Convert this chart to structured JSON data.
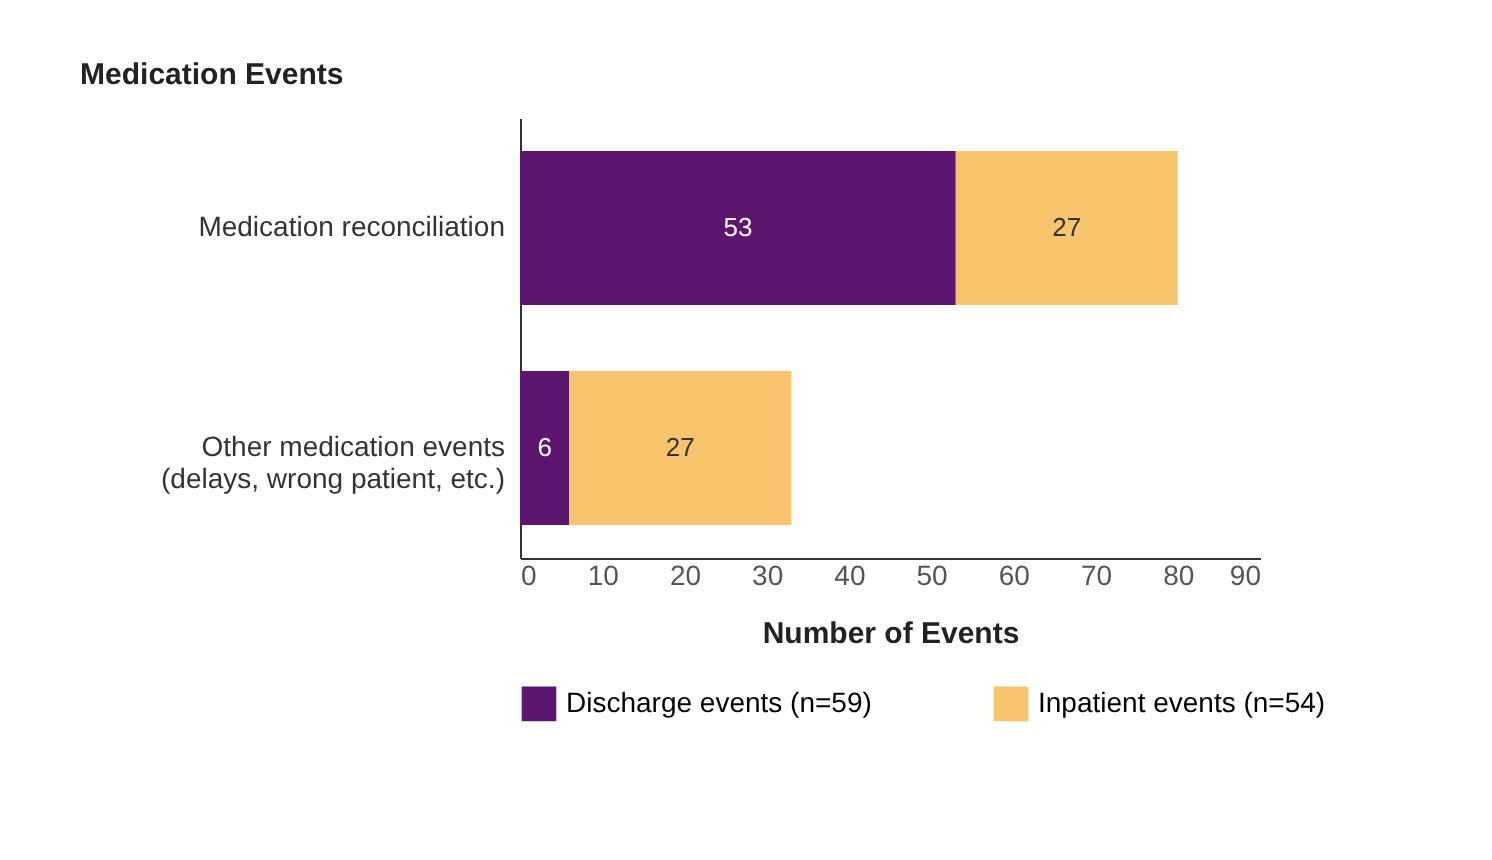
{
  "chart_data": {
    "type": "bar",
    "orientation": "horizontal",
    "stacked": true,
    "title": "Medication Events",
    "xlabel": "Number of Events",
    "categories": [
      "Medication reconciliation",
      "Other medication events\n(delays, wrong patient, etc.)"
    ],
    "series": [
      {
        "name": "Discharge events (n=59)",
        "color": "#5c1670",
        "values": [
          53,
          6
        ]
      },
      {
        "name": "Inpatient events (n=54)",
        "color": "#f8c46c",
        "values": [
          27,
          27
        ]
      }
    ],
    "xlim": [
      0,
      90
    ],
    "xticks": [
      0,
      10,
      20,
      30,
      40,
      50,
      60,
      70,
      80,
      90
    ],
    "data_labels": true,
    "grid": false,
    "legend": "bottom"
  }
}
